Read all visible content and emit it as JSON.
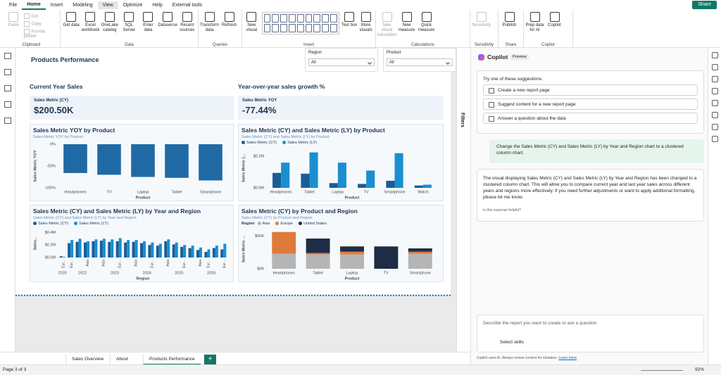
{
  "ribbon": {
    "tabs": [
      "File",
      "Home",
      "Insert",
      "Modeling",
      "View",
      "Optimize",
      "Help",
      "External tools"
    ],
    "share": "Share",
    "groups": [
      {
        "label": "Clipboard",
        "buttons": [
          {
            "label": "Paste",
            "enabled": false
          },
          {
            "label": "Cut",
            "enabled": false
          },
          {
            "label": "Copy",
            "enabled": false
          },
          {
            "label": "Format painter",
            "enabled": false
          }
        ]
      },
      {
        "label": "Data",
        "buttons": [
          {
            "label": "Get data",
            "enabled": true
          },
          {
            "label": "Excel workbook",
            "enabled": true
          },
          {
            "label": "OneLake catalog",
            "enabled": true
          },
          {
            "label": "SQL Server",
            "enabled": true
          },
          {
            "label": "Enter data",
            "enabled": true
          },
          {
            "label": "Dataverse",
            "enabled": true
          },
          {
            "label": "Recent sources",
            "enabled": true
          }
        ]
      },
      {
        "label": "Queries",
        "buttons": [
          {
            "label": "Transform data",
            "enabled": true
          },
          {
            "label": "Refresh",
            "enabled": true
          }
        ]
      },
      {
        "label": "Insert",
        "buttons": [
          {
            "label": "New visual",
            "enabled": true
          },
          {
            "label": "Text box",
            "enabled": true
          },
          {
            "label": "More visuals",
            "enabled": true
          }
        ]
      },
      {
        "label": "Calculations",
        "buttons": [
          {
            "label": "New visual calculation",
            "enabled": false
          },
          {
            "label": "New measure",
            "enabled": true
          },
          {
            "label": "Quick measure",
            "enabled": true
          }
        ]
      },
      {
        "label": "Sensitivity",
        "buttons": [
          {
            "label": "Sensitivity",
            "enabled": false
          }
        ]
      },
      {
        "label": "Share",
        "buttons": [
          {
            "label": "Publish",
            "enabled": true
          }
        ]
      },
      {
        "label": "Copilot",
        "buttons": [
          {
            "label": "Prep data for AI",
            "enabled": true
          },
          {
            "label": "Copilot",
            "enabled": true
          }
        ]
      }
    ]
  },
  "report": {
    "title": "Products Performance",
    "slicers": [
      {
        "label": "Region",
        "value": "All"
      },
      {
        "label": "Product",
        "value": "All"
      }
    ],
    "cards": [
      {
        "heading": "Current Year Sales",
        "label": "Sales Metric (CY)",
        "value": "$200.50K"
      },
      {
        "heading": "Year-over-year sales growth %",
        "label": "Sales Metric YOY",
        "value": "-77.44%"
      }
    ]
  },
  "visuals": [
    {
      "type": "bar",
      "title": "Sales Metric YOY by Product",
      "subtitle": "Sales Metric YOY by Product",
      "x_label": "Product",
      "y_label": "Sales Metric YOY",
      "color": "#1f6aa5",
      "categories": [
        "Headphones",
        "TV",
        "Laptop",
        "Tablet",
        "Smartphone"
      ],
      "values": [
        -66,
        -70,
        -75,
        -77,
        -83
      ],
      "ylim": [
        -100,
        0
      ],
      "yticks": [
        {
          "value": 0,
          "label": "0%"
        },
        {
          "value": -50,
          "label": "-50%"
        },
        {
          "value": -100,
          "label": "-100%"
        }
      ]
    },
    {
      "type": "grouped-bar",
      "title": "Sales Metric (CY) and Sales Metric (LY) by Product",
      "subtitle": "Sales Metric (CY) and Sales Metric (LY) by Product",
      "x_label": "Product",
      "y_label": "Sales Metric (...",
      "categories": [
        "Headphones",
        "Tablet",
        "Laptop",
        "TV",
        "Smartphone",
        "Watch"
      ],
      "series": [
        {
          "name": "Sales Metric (CY)",
          "color": "#1a5d96",
          "values": [
            95000,
            90000,
            30000,
            25000,
            45000,
            15000
          ]
        },
        {
          "name": "Sales Metric (LY)",
          "color": "#1a8fd0",
          "values": [
            160000,
            225000,
            160000,
            110000,
            220000,
            20000
          ]
        }
      ],
      "ylim": [
        0,
        250000
      ],
      "yticks": [
        {
          "value": 0,
          "label": "$0.0M"
        },
        {
          "value": 200000,
          "label": "$0.2M"
        }
      ]
    },
    {
      "type": "grouped-bar-hierarchy",
      "title": "Sales Metric (CY) and Sales Metric (LY) by Year and Region",
      "subtitle": "Sales Metric (CY) and Sales Metric (LY) by Year and Region",
      "x_label": "Region",
      "y_label": "Sales...",
      "series": [
        {
          "name": "Sales Metric (CY)",
          "color": "#1a5d96"
        },
        {
          "name": "Sales Metric (LY)",
          "color": "#1a8fd0"
        }
      ],
      "groups": [
        {
          "label": "2020",
          "categories": [
            "Eur..."
          ],
          "cy": [
            20000
          ],
          "ly": [
            10000
          ]
        },
        {
          "label": "2022",
          "categories": [
            "Eur...",
            null,
            "Asia",
            null
          ],
          "cy": [
            230000,
            250000,
            240000,
            260000
          ],
          "ly": [
            280000,
            300000,
            260000,
            290000
          ]
        },
        {
          "label": "2023",
          "categories": [
            "Asia",
            null,
            "Eur...",
            null
          ],
          "cy": [
            270000,
            250000,
            260000,
            240000
          ],
          "ly": [
            300000,
            290000,
            310000,
            280000
          ]
        },
        {
          "label": "2024",
          "categories": [
            "Asia",
            null,
            "Eur...",
            null
          ],
          "cy": [
            250000,
            230000,
            200000,
            190000
          ],
          "ly": [
            280000,
            260000,
            240000,
            220000
          ]
        },
        {
          "label": "2025",
          "categories": [
            "Asia",
            null,
            "Eur...",
            null
          ],
          "cy": [
            260000,
            210000,
            170000,
            150000
          ],
          "ly": [
            290000,
            240000,
            200000,
            190000
          ]
        },
        {
          "label": "2026",
          "categories": [
            "Asia",
            "Eur...",
            null,
            "Eur..."
          ],
          "cy": [
            120000,
            90000,
            150000,
            130000
          ],
          "ly": [
            160000,
            130000,
            190000,
            220000
          ]
        }
      ],
      "ylim": [
        0,
        450000
      ],
      "yticks": [
        {
          "value": 0,
          "label": "$0.0M"
        },
        {
          "value": 200000,
          "label": "$0.2M"
        },
        {
          "value": 400000,
          "label": "$0.4M"
        }
      ]
    },
    {
      "type": "stacked-bar",
      "title": "Sales Metric (CY) by Product and Region",
      "subtitle": "Sales Metric (CY) by Product and Region",
      "x_label": "Product",
      "y_label": "Sales Metric ...",
      "legend_title": "Region",
      "categories": [
        "Headphones",
        "Tablet",
        "Laptop",
        "TV",
        "Smartphone"
      ],
      "series": [
        {
          "name": "Asia",
          "color": "#b5b5b5",
          "values": [
            23000,
            22000,
            22000,
            0,
            23000
          ]
        },
        {
          "name": "Europe",
          "color": "#e07a3b",
          "values": [
            33000,
            2000,
            4000,
            0,
            3000
          ]
        },
        {
          "name": "United States",
          "color": "#1e2c45",
          "values": [
            0,
            22000,
            8000,
            34000,
            5000
          ]
        }
      ],
      "ylim": [
        0,
        60000
      ],
      "yticks": [
        {
          "value": 0,
          "label": "$0K"
        },
        {
          "value": 50000,
          "label": "$50K"
        }
      ]
    }
  ],
  "filters": {
    "label": "Filters"
  },
  "copilot": {
    "title": "Copilot",
    "badge": "Preview",
    "suggestions_heading": "Try one of these suggestions:",
    "suggestions": [
      "Create a new report page",
      "Suggest content for a new report page",
      "Answer a question about the data"
    ],
    "user_message": "Change the Sales Metric (CY) and Sales Metric (LY) by Year and Region chart to a clustered column chart.",
    "reply": "The visual displaying Sales Metric (CY) and Sales Metric (LY) by Year and Region has been changed to a clustered column chart. This will allow you to compare current year and last year sales across different years and regions more effectively. If you need further adjustments or want to apply additional formatting, please let me know.",
    "feedback": "Is this response helpful?",
    "input_placeholder": "Describe the report you want to create or ask a question",
    "skills": "Select skills",
    "disclaimer": "Copilot uses AI. Always review content for mistakes.",
    "learn_more": "Learn more"
  },
  "pages": {
    "tabs": [
      "Sales Overview",
      "About",
      "Products Performance"
    ],
    "add": "+"
  },
  "status": {
    "page": "Page 3 of 3",
    "zoom": "92%"
  }
}
